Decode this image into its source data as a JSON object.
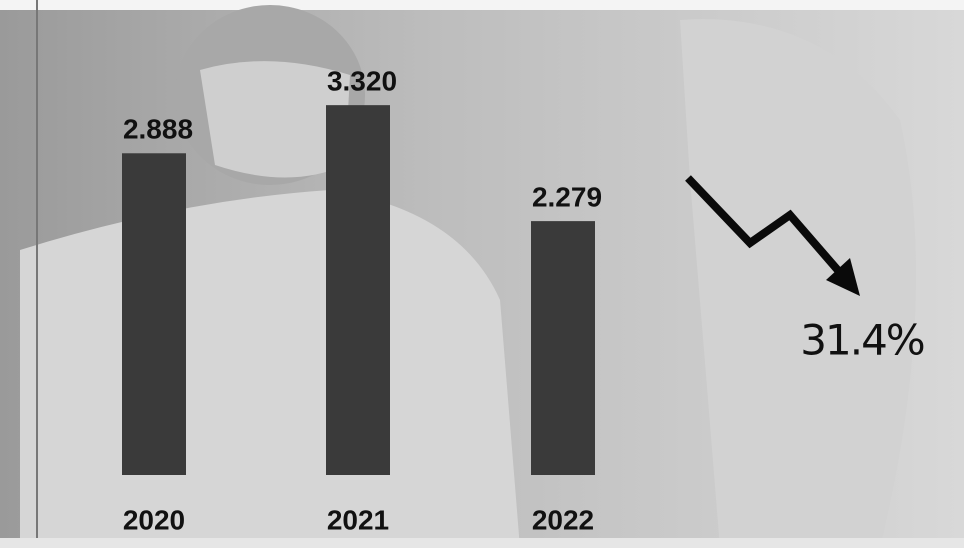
{
  "chart_data": {
    "type": "bar",
    "categories": [
      "2020",
      "2021",
      "2022"
    ],
    "values": [
      2.888,
      3.32,
      2.279
    ],
    "value_labels": [
      "2.888",
      "3.320",
      "2.279"
    ],
    "color": "#3a3a3a",
    "annotation": "31.4%"
  }
}
